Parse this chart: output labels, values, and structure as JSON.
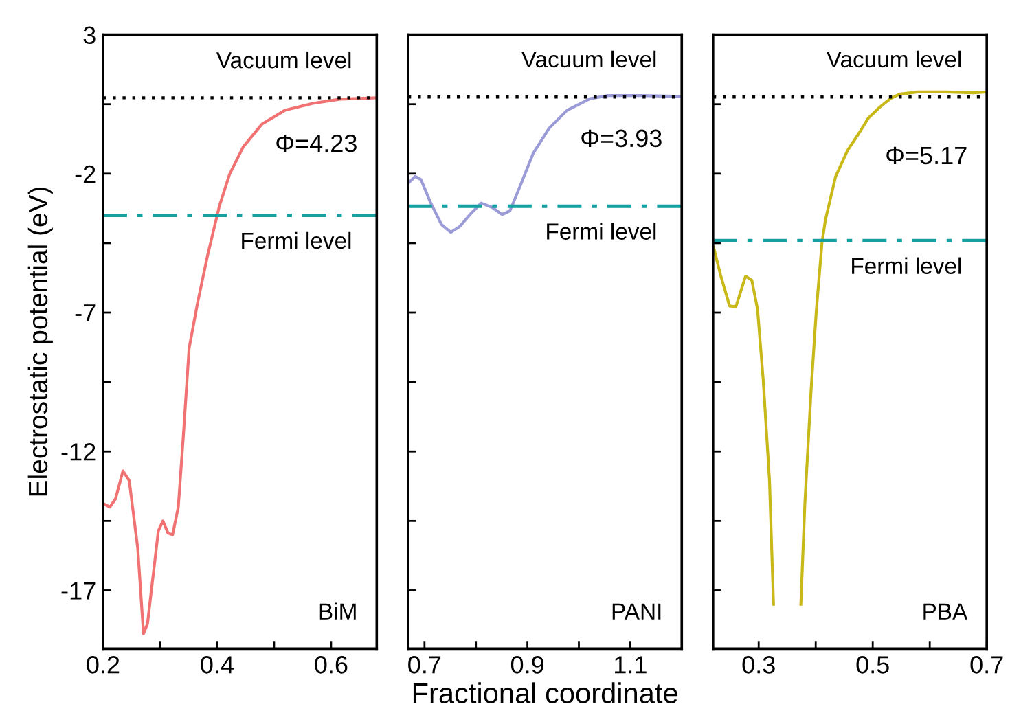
{
  "chart_data": [
    {
      "type": "line",
      "ylabel": "Electrostatic potential (eV)",
      "xlim": [
        0.2,
        0.68
      ],
      "ylim": [
        -19.1,
        3
      ],
      "xticks": [
        0.2,
        {
          "value": 0.3,
          "label": null
        },
        0.4,
        {
          "value": 0.5,
          "label": null
        },
        0.6
      ],
      "yticks": [
        3,
        {
          "value": 0.5,
          "label": null
        },
        -2,
        {
          "value": -4.5,
          "label": null
        },
        -7,
        {
          "value": -9.5,
          "label": null
        },
        -12,
        {
          "value": -14.5,
          "label": null
        },
        -17
      ],
      "series": [
        {
          "color": "#f07272",
          "x": [
            0.2,
            0.212,
            0.222,
            0.235,
            0.246,
            0.261,
            0.271,
            0.278,
            0.297,
            0.305,
            0.314,
            0.322,
            0.332,
            0.341,
            0.351,
            0.366,
            0.383,
            0.404,
            0.422,
            0.446,
            0.479,
            0.519,
            0.568,
            0.616,
            0.68
          ],
          "values": [
            -13.87,
            -14.0,
            -13.7,
            -12.7,
            -13.05,
            -15.5,
            -18.56,
            -18.2,
            -14.86,
            -14.5,
            -14.94,
            -15.0,
            -14.0,
            -11.4,
            -8.28,
            -6.63,
            -4.98,
            -3.17,
            -2.02,
            -1.03,
            -0.21,
            0.28,
            0.53,
            0.68,
            0.73
          ]
        }
      ],
      "ref_lines": [
        {
          "axis": "y",
          "value": 0.73,
          "label": "Vacuum level",
          "color": "#000000",
          "line_style": "dotted"
        },
        {
          "axis": "y",
          "value": -3.5,
          "label": "Fermi level",
          "color": "#16a0a0",
          "line_style": "dashdot"
        }
      ],
      "annotations": [
        "Φ=4.23",
        "BiM"
      ],
      "tick_labels": "xy",
      "grid": false,
      "legend": false
    },
    {
      "type": "line",
      "xlabel": "Fractional coordinate",
      "xlim": [
        0.668,
        1.2
      ],
      "ylim": [
        -19.1,
        3
      ],
      "xticks": [
        0.7,
        {
          "value": 0.8,
          "label": null
        },
        0.9,
        {
          "value": 1.0,
          "label": null
        },
        1.1
      ],
      "yticks": [
        3,
        {
          "value": 0.5,
          "label": null
        },
        -2,
        {
          "value": -4.5,
          "label": null
        },
        -7,
        {
          "value": -9.5,
          "label": null
        },
        -12,
        {
          "value": -14.5,
          "label": null
        },
        -17
      ],
      "series": [
        {
          "color": "#9b9bd8",
          "x": [
            0.668,
            0.682,
            0.693,
            0.711,
            0.733,
            0.751,
            0.768,
            0.791,
            0.81,
            0.831,
            0.851,
            0.866,
            0.888,
            0.911,
            0.942,
            0.977,
            1.022,
            1.057,
            1.12,
            1.2
          ],
          "values": [
            -2.35,
            -2.1,
            -2.21,
            -3.01,
            -3.83,
            -4.11,
            -3.91,
            -3.42,
            -3.06,
            -3.21,
            -3.47,
            -3.34,
            -2.35,
            -1.28,
            -0.37,
            0.28,
            0.7,
            0.81,
            0.81,
            0.78
          ]
        }
      ],
      "ref_lines": [
        {
          "axis": "y",
          "value": 0.76,
          "label": "Vacuum level",
          "color": "#000000",
          "line_style": "dotted"
        },
        {
          "axis": "y",
          "value": -3.17,
          "label": "Fermi level",
          "color": "#16a0a0",
          "line_style": "dashdot"
        }
      ],
      "annotations": [
        "Φ=3.93",
        "PANI"
      ],
      "tick_labels": "x",
      "grid": false,
      "legend": false
    },
    {
      "type": "line",
      "xlim": [
        0.22,
        0.7
      ],
      "ylim": [
        -19.1,
        3
      ],
      "xticks": [
        0.3,
        {
          "value": 0.4,
          "label": null
        },
        0.5,
        {
          "value": 0.6,
          "label": null
        },
        0.7
      ],
      "yticks": [
        3,
        {
          "value": 0.5,
          "label": null
        },
        -2,
        {
          "value": -4.5,
          "label": null
        },
        -7,
        {
          "value": -9.5,
          "label": null
        },
        -12,
        {
          "value": -14.5,
          "label": null
        },
        -17
      ],
      "series": [
        {
          "color": "#c8b818",
          "x": [
            0.221,
            0.233,
            0.249,
            0.26,
            0.277,
            0.288,
            0.298,
            0.308,
            0.319,
            0.326,
            0.328,
            0.371,
            0.374,
            0.381,
            0.392,
            0.401,
            0.411,
            0.417,
            0.435,
            0.456,
            0.476,
            0.492,
            0.511,
            0.531,
            0.547,
            0.579,
            0.628,
            0.676,
            0.699
          ],
          "values": [
            -4.65,
            -5.64,
            -6.76,
            -6.79,
            -5.69,
            -5.84,
            -6.88,
            -9.43,
            -13.05,
            -17.5,
            null,
            null,
            -17.5,
            -13.87,
            -9.76,
            -6.96,
            -4.49,
            -3.67,
            -2.1,
            -1.16,
            -0.54,
            -0.01,
            0.37,
            0.7,
            0.86,
            0.94,
            0.94,
            0.91,
            0.94
          ]
        }
      ],
      "ref_lines": [
        {
          "axis": "y",
          "value": 0.76,
          "label": "Vacuum level",
          "color": "#000000",
          "line_style": "dotted"
        },
        {
          "axis": "y",
          "value": -4.41,
          "label": "Fermi level",
          "color": "#16a0a0",
          "line_style": "dashdot"
        }
      ],
      "annotations": [
        "Φ=5.17",
        "PBA"
      ],
      "tick_labels": "x",
      "grid": false,
      "legend": false
    }
  ]
}
